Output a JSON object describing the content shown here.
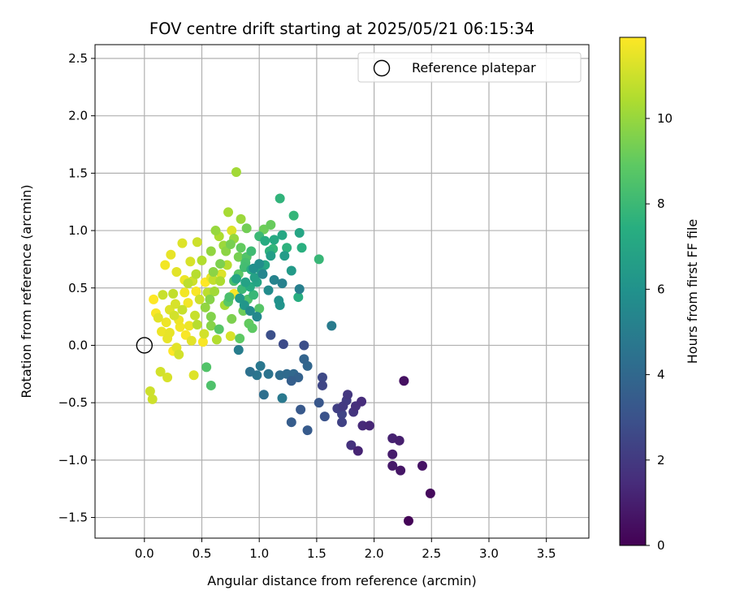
{
  "chart_data": {
    "type": "scatter",
    "title": "FOV centre drift starting at 2025/05/21 06:15:34",
    "xlabel": "Angular distance from reference (arcmin)",
    "ylabel": "Rotation from reference (arcmin)",
    "xlim": [
      -0.43,
      3.87
    ],
    "ylim": [
      -1.68,
      2.62
    ],
    "xticks": [
      "0.0",
      "0.5",
      "1.0",
      "1.5",
      "2.0",
      "2.5",
      "3.0",
      "3.5"
    ],
    "xtick_values": [
      0,
      0.5,
      1,
      1.5,
      2,
      2.5,
      3,
      3.5
    ],
    "yticks": [
      "−1.5",
      "−1.0",
      "−0.5",
      "0.0",
      "0.5",
      "1.0",
      "1.5",
      "2.0",
      "2.5"
    ],
    "ytick_values": [
      -1.5,
      -1,
      -0.5,
      0,
      0.5,
      1,
      1.5,
      2,
      2.5
    ],
    "grid": true,
    "legend": {
      "position": "top-right",
      "label": "Reference platepar"
    },
    "reference_point": {
      "x": 0.0,
      "y": 0.0
    },
    "colorbar": {
      "label": "Hours from first FF file",
      "min": 0,
      "max": 11.9,
      "ticks": [
        "0",
        "2",
        "4",
        "6",
        "8",
        "10"
      ],
      "tick_values": [
        0,
        2,
        4,
        6,
        8,
        10
      ],
      "colormap": "viridis"
    },
    "points": [
      {
        "x": 2.3,
        "y": -1.53,
        "h": 0.1
      },
      {
        "x": 2.49,
        "y": -1.29,
        "h": 0.3
      },
      {
        "x": 2.26,
        "y": -0.31,
        "h": 0.5
      },
      {
        "x": 2.42,
        "y": -1.05,
        "h": 0.6
      },
      {
        "x": 2.23,
        "y": -1.09,
        "h": 0.7
      },
      {
        "x": 2.16,
        "y": -1.05,
        "h": 0.8
      },
      {
        "x": 2.16,
        "y": -0.95,
        "h": 0.9
      },
      {
        "x": 2.22,
        "y": -0.83,
        "h": 1.0
      },
      {
        "x": 2.16,
        "y": -0.81,
        "h": 1.1
      },
      {
        "x": 1.86,
        "y": -0.92,
        "h": 1.2
      },
      {
        "x": 1.96,
        "y": -0.7,
        "h": 1.3
      },
      {
        "x": 1.9,
        "y": -0.7,
        "h": 1.4
      },
      {
        "x": 1.89,
        "y": -0.49,
        "h": 1.5
      },
      {
        "x": 1.84,
        "y": -0.53,
        "h": 1.6
      },
      {
        "x": 1.8,
        "y": -0.87,
        "h": 1.7
      },
      {
        "x": 1.82,
        "y": -0.58,
        "h": 1.8
      },
      {
        "x": 1.77,
        "y": -0.43,
        "h": 1.9
      },
      {
        "x": 1.73,
        "y": -0.53,
        "h": 2.0
      },
      {
        "x": 1.76,
        "y": -0.48,
        "h": 2.1
      },
      {
        "x": 1.68,
        "y": -0.55,
        "h": 2.2
      },
      {
        "x": 1.72,
        "y": -0.67,
        "h": 2.3
      },
      {
        "x": 1.72,
        "y": -0.6,
        "h": 2.4
      },
      {
        "x": 1.55,
        "y": -0.35,
        "h": 2.5
      },
      {
        "x": 1.55,
        "y": -0.28,
        "h": 2.6
      },
      {
        "x": 1.21,
        "y": 0.01,
        "h": 2.7
      },
      {
        "x": 1.39,
        "y": 0.0,
        "h": 2.8
      },
      {
        "x": 1.1,
        "y": 0.09,
        "h": 2.9
      },
      {
        "x": 1.57,
        "y": -0.62,
        "h": 3.0
      },
      {
        "x": 1.52,
        "y": -0.5,
        "h": 3.2
      },
      {
        "x": 1.36,
        "y": -0.56,
        "h": 3.3
      },
      {
        "x": 1.42,
        "y": -0.74,
        "h": 3.4
      },
      {
        "x": 1.28,
        "y": -0.67,
        "h": 3.5
      },
      {
        "x": 1.28,
        "y": -0.31,
        "h": 3.6
      },
      {
        "x": 1.34,
        "y": -0.28,
        "h": 3.7
      },
      {
        "x": 1.39,
        "y": -0.12,
        "h": 3.8
      },
      {
        "x": 1.42,
        "y": -0.18,
        "h": 3.9
      },
      {
        "x": 1.3,
        "y": -0.25,
        "h": 4.0
      },
      {
        "x": 1.24,
        "y": -0.25,
        "h": 4.1
      },
      {
        "x": 1.18,
        "y": -0.26,
        "h": 4.2
      },
      {
        "x": 1.04,
        "y": -0.43,
        "h": 4.3
      },
      {
        "x": 0.92,
        "y": -0.23,
        "h": 4.4
      },
      {
        "x": 1.08,
        "y": -0.25,
        "h": 4.5
      },
      {
        "x": 0.98,
        "y": -0.26,
        "h": 4.6
      },
      {
        "x": 1.01,
        "y": -0.18,
        "h": 4.7
      },
      {
        "x": 1.2,
        "y": -0.46,
        "h": 4.8
      },
      {
        "x": 1.63,
        "y": 0.17,
        "h": 4.9
      },
      {
        "x": 0.82,
        "y": -0.04,
        "h": 5.0
      },
      {
        "x": 1.35,
        "y": 0.49,
        "h": 5.1
      },
      {
        "x": 1.2,
        "y": 0.54,
        "h": 5.2
      },
      {
        "x": 1.13,
        "y": 0.57,
        "h": 5.3
      },
      {
        "x": 1.03,
        "y": 0.62,
        "h": 5.4
      },
      {
        "x": 0.98,
        "y": 0.25,
        "h": 5.5
      },
      {
        "x": 0.92,
        "y": 0.3,
        "h": 5.6
      },
      {
        "x": 1.08,
        "y": 0.48,
        "h": 5.7
      },
      {
        "x": 1.0,
        "y": 0.71,
        "h": 5.8
      },
      {
        "x": 0.95,
        "y": 0.67,
        "h": 5.9
      },
      {
        "x": 1.17,
        "y": 0.39,
        "h": 6.0
      },
      {
        "x": 1.18,
        "y": 0.35,
        "h": 6.1
      },
      {
        "x": 0.87,
        "y": 0.35,
        "h": 6.2
      },
      {
        "x": 0.83,
        "y": 0.41,
        "h": 6.3
      },
      {
        "x": 1.28,
        "y": 0.65,
        "h": 6.4
      },
      {
        "x": 1.22,
        "y": 0.78,
        "h": 6.5
      },
      {
        "x": 1.1,
        "y": 0.78,
        "h": 6.6
      },
      {
        "x": 0.96,
        "y": 0.59,
        "h": 6.7
      },
      {
        "x": 0.88,
        "y": 0.55,
        "h": 6.8
      },
      {
        "x": 0.8,
        "y": 0.58,
        "h": 6.9
      },
      {
        "x": 1.35,
        "y": 0.98,
        "h": 7.0
      },
      {
        "x": 1.2,
        "y": 0.96,
        "h": 7.1
      },
      {
        "x": 1.13,
        "y": 0.92,
        "h": 7.2
      },
      {
        "x": 1.05,
        "y": 0.91,
        "h": 7.3
      },
      {
        "x": 1.34,
        "y": 0.42,
        "h": 7.4
      },
      {
        "x": 1.37,
        "y": 0.85,
        "h": 7.5
      },
      {
        "x": 1.24,
        "y": 0.85,
        "h": 7.6
      },
      {
        "x": 1.18,
        "y": 1.28,
        "h": 7.7
      },
      {
        "x": 1.3,
        "y": 1.13,
        "h": 7.8
      },
      {
        "x": 1.52,
        "y": 0.75,
        "h": 7.9
      },
      {
        "x": 1.0,
        "y": 0.95,
        "h": 8.0
      },
      {
        "x": 0.93,
        "y": 0.82,
        "h": 8.1
      },
      {
        "x": 0.87,
        "y": 0.68,
        "h": 8.2
      },
      {
        "x": 0.78,
        "y": 0.56,
        "h": 8.3
      },
      {
        "x": 0.74,
        "y": 0.42,
        "h": 8.4
      },
      {
        "x": 0.58,
        "y": -0.35,
        "h": 8.5
      },
      {
        "x": 0.54,
        "y": -0.19,
        "h": 8.6
      },
      {
        "x": 0.65,
        "y": 0.14,
        "h": 8.7
      },
      {
        "x": 0.73,
        "y": 0.38,
        "h": 8.8
      },
      {
        "x": 0.83,
        "y": 0.06,
        "h": 8.9
      },
      {
        "x": 0.91,
        "y": 0.19,
        "h": 9.0
      },
      {
        "x": 1.1,
        "y": 1.05,
        "h": 9.1
      },
      {
        "x": 1.04,
        "y": 1.01,
        "h": 9.2
      },
      {
        "x": 0.89,
        "y": 1.02,
        "h": 9.3
      },
      {
        "x": 0.82,
        "y": 0.77,
        "h": 9.4
      },
      {
        "x": 0.76,
        "y": 0.23,
        "h": 9.5
      },
      {
        "x": 0.58,
        "y": 0.25,
        "h": 9.6
      },
      {
        "x": 0.58,
        "y": 0.17,
        "h": 9.7
      },
      {
        "x": 0.6,
        "y": 0.64,
        "h": 9.8
      },
      {
        "x": 0.58,
        "y": 0.82,
        "h": 9.9
      },
      {
        "x": 0.62,
        "y": 1.0,
        "h": 10.0
      },
      {
        "x": 0.69,
        "y": 0.87,
        "h": 10.1
      },
      {
        "x": 0.8,
        "y": 1.51,
        "h": 10.2
      },
      {
        "x": 0.73,
        "y": 1.16,
        "h": 10.3
      },
      {
        "x": 0.65,
        "y": 0.95,
        "h": 10.4
      },
      {
        "x": 0.5,
        "y": 0.74,
        "h": 10.5
      },
      {
        "x": 0.45,
        "y": 0.62,
        "h": 10.6
      },
      {
        "x": 0.38,
        "y": 0.54,
        "h": 10.7
      },
      {
        "x": 0.25,
        "y": 0.45,
        "h": 10.8
      },
      {
        "x": 0.16,
        "y": 0.44,
        "h": 10.9
      },
      {
        "x": 0.07,
        "y": -0.47,
        "h": 11.0
      },
      {
        "x": 0.05,
        "y": -0.4,
        "h": 11.0
      },
      {
        "x": 0.14,
        "y": -0.23,
        "h": 11.1
      },
      {
        "x": 0.2,
        "y": -0.28,
        "h": 11.2
      },
      {
        "x": 0.43,
        "y": -0.26,
        "h": 11.3
      },
      {
        "x": 0.28,
        "y": -0.02,
        "h": 11.4
      },
      {
        "x": 0.22,
        "y": 0.11,
        "h": 11.5
      },
      {
        "x": 0.3,
        "y": 0.22,
        "h": 11.6
      },
      {
        "x": 0.38,
        "y": 0.37,
        "h": 11.7
      },
      {
        "x": 0.45,
        "y": 0.47,
        "h": 11.8
      },
      {
        "x": 0.53,
        "y": 0.55,
        "h": 11.9
      },
      {
        "x": 0.35,
        "y": 0.57,
        "h": 11.6
      },
      {
        "x": 0.28,
        "y": 0.64,
        "h": 11.4
      },
      {
        "x": 0.4,
        "y": 0.73,
        "h": 11.2
      },
      {
        "x": 0.46,
        "y": 0.9,
        "h": 11.0
      },
      {
        "x": 0.33,
        "y": 0.89,
        "h": 11.3
      },
      {
        "x": 0.23,
        "y": 0.79,
        "h": 11.5
      },
      {
        "x": 0.18,
        "y": 0.7,
        "h": 11.7
      },
      {
        "x": 0.1,
        "y": 0.28,
        "h": 11.8
      },
      {
        "x": 0.08,
        "y": 0.4,
        "h": 11.9
      },
      {
        "x": 0.15,
        "y": 0.12,
        "h": 11.6
      },
      {
        "x": 0.27,
        "y": 0.36,
        "h": 11.2
      },
      {
        "x": 0.44,
        "y": 0.26,
        "h": 10.9
      },
      {
        "x": 0.52,
        "y": 0.1,
        "h": 11.1
      },
      {
        "x": 0.63,
        "y": 0.05,
        "h": 10.5
      },
      {
        "x": 0.7,
        "y": 0.35,
        "h": 10.3
      },
      {
        "x": 0.78,
        "y": 0.93,
        "h": 10.0
      },
      {
        "x": 0.84,
        "y": 1.1,
        "h": 10.1
      },
      {
        "x": 0.76,
        "y": 1.0,
        "h": 11.3
      },
      {
        "x": 0.48,
        "y": 0.4,
        "h": 11.0
      },
      {
        "x": 0.55,
        "y": 0.46,
        "h": 10.7
      },
      {
        "x": 0.66,
        "y": 0.56,
        "h": 10.4
      },
      {
        "x": 0.72,
        "y": 0.7,
        "h": 10.6
      },
      {
        "x": 0.31,
        "y": 0.16,
        "h": 11.7
      },
      {
        "x": 0.36,
        "y": 0.09,
        "h": 11.8
      },
      {
        "x": 0.41,
        "y": 0.04,
        "h": 11.4
      },
      {
        "x": 0.2,
        "y": 0.06,
        "h": 11.5
      },
      {
        "x": 0.25,
        "y": -0.05,
        "h": 11.9
      },
      {
        "x": 0.3,
        "y": -0.08,
        "h": 11.1
      },
      {
        "x": 0.39,
        "y": 0.17,
        "h": 11.6
      },
      {
        "x": 0.12,
        "y": 0.24,
        "h": 11.4
      },
      {
        "x": 0.58,
        "y": 0.59,
        "h": 11.5
      },
      {
        "x": 0.67,
        "y": 0.62,
        "h": 11.3
      },
      {
        "x": 0.78,
        "y": 0.45,
        "h": 11.8
      },
      {
        "x": 0.75,
        "y": 0.08,
        "h": 11.2
      },
      {
        "x": 0.53,
        "y": 0.33,
        "h": 9.9
      },
      {
        "x": 0.57,
        "y": 0.4,
        "h": 9.7
      },
      {
        "x": 0.6,
        "y": 0.57,
        "h": 10.8
      },
      {
        "x": 0.9,
        "y": 0.4,
        "h": 8.5
      },
      {
        "x": 0.85,
        "y": 0.49,
        "h": 8.0
      },
      {
        "x": 0.92,
        "y": 0.51,
        "h": 7.3
      },
      {
        "x": 0.95,
        "y": 0.44,
        "h": 7.9
      },
      {
        "x": 0.98,
        "y": 0.55,
        "h": 6.9
      },
      {
        "x": 1.02,
        "y": 0.64,
        "h": 6.6
      },
      {
        "x": 1.05,
        "y": 0.7,
        "h": 7.1
      },
      {
        "x": 1.09,
        "y": 0.82,
        "h": 7.6
      },
      {
        "x": 1.12,
        "y": 0.84,
        "h": 7.8
      },
      {
        "x": 0.84,
        "y": 0.85,
        "h": 9.0
      },
      {
        "x": 0.89,
        "y": 0.77,
        "h": 8.6
      },
      {
        "x": 0.93,
        "y": 0.66,
        "h": 7.4
      },
      {
        "x": 0.75,
        "y": 0.88,
        "h": 9.4
      },
      {
        "x": 0.71,
        "y": 0.82,
        "h": 9.8
      },
      {
        "x": 0.86,
        "y": 0.3,
        "h": 9.2
      },
      {
        "x": 0.94,
        "y": 0.15,
        "h": 8.9
      },
      {
        "x": 1.0,
        "y": 0.32,
        "h": 8.7
      },
      {
        "x": 0.82,
        "y": 0.62,
        "h": 8.8
      },
      {
        "x": 0.88,
        "y": 0.72,
        "h": 8.3
      },
      {
        "x": 0.66,
        "y": 0.71,
        "h": 9.5
      },
      {
        "x": 0.61,
        "y": 0.47,
        "h": 10.2
      },
      {
        "x": 0.42,
        "y": 0.56,
        "h": 11.0
      },
      {
        "x": 0.35,
        "y": 0.46,
        "h": 11.7
      },
      {
        "x": 0.22,
        "y": 0.31,
        "h": 11.3
      },
      {
        "x": 0.19,
        "y": 0.2,
        "h": 11.6
      },
      {
        "x": 0.26,
        "y": 0.26,
        "h": 11.1
      },
      {
        "x": 0.33,
        "y": 0.31,
        "h": 10.9
      },
      {
        "x": 0.46,
        "y": 0.18,
        "h": 10.6
      },
      {
        "x": 0.51,
        "y": 0.03,
        "h": 11.8
      }
    ]
  }
}
